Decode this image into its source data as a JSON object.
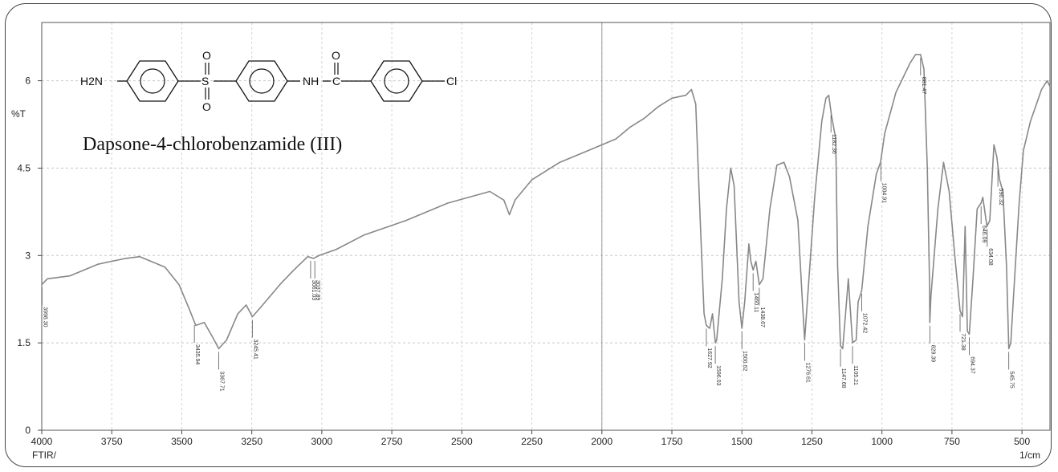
{
  "chart_data": {
    "type": "line",
    "title": "Dapsone-4-chlorobenzamide (III)",
    "structure": {
      "amine": "H2N",
      "so_top": "O",
      "so_center": "S",
      "so_bottom": "O",
      "nh": "NH",
      "c": "C",
      "carbonyl_o": "O",
      "chloro": "Cl"
    },
    "xlabel": "1/cm",
    "xlabel_left": "FTIR/",
    "ylabel": "%T",
    "xlim": [
      4000,
      400
    ],
    "ylim": [
      0,
      7
    ],
    "x_ticks": [
      "4000",
      "3750",
      "3500",
      "3250",
      "3000",
      "2750",
      "2500",
      "2250",
      "2000",
      "1750",
      "1500",
      "1250",
      "1000",
      "750",
      "500"
    ],
    "x_tick_values": [
      4000,
      3750,
      3500,
      3250,
      3000,
      2750,
      2500,
      2250,
      2000,
      1750,
      1500,
      1250,
      1000,
      750,
      500
    ],
    "y_ticks": [
      "0",
      "1.5",
      "3",
      "4.5",
      "6"
    ],
    "y_tick_values": [
      0,
      1.5,
      3,
      4.5,
      6
    ],
    "series": [
      {
        "color": "#888888",
        "points": [
          [
            4000,
            2.5
          ],
          [
            3980,
            2.6
          ],
          [
            3900,
            2.65
          ],
          [
            3800,
            2.85
          ],
          [
            3700,
            2.95
          ],
          [
            3650,
            2.98
          ],
          [
            3560,
            2.8
          ],
          [
            3510,
            2.5
          ],
          [
            3475,
            2.1
          ],
          [
            3450,
            1.8
          ],
          [
            3420,
            1.85
          ],
          [
            3390,
            1.6
          ],
          [
            3368,
            1.4
          ],
          [
            3340,
            1.55
          ],
          [
            3300,
            2.0
          ],
          [
            3270,
            2.15
          ],
          [
            3248,
            1.95
          ],
          [
            3220,
            2.1
          ],
          [
            3150,
            2.5
          ],
          [
            3100,
            2.75
          ],
          [
            3050,
            2.98
          ],
          [
            3030,
            2.95
          ],
          [
            3010,
            3.0
          ],
          [
            2950,
            3.1
          ],
          [
            2850,
            3.35
          ],
          [
            2700,
            3.6
          ],
          [
            2550,
            3.9
          ],
          [
            2400,
            4.1
          ],
          [
            2350,
            3.95
          ],
          [
            2330,
            3.7
          ],
          [
            2310,
            3.95
          ],
          [
            2250,
            4.3
          ],
          [
            2150,
            4.6
          ],
          [
            2050,
            4.8
          ],
          [
            1950,
            5.0
          ],
          [
            1900,
            5.2
          ],
          [
            1850,
            5.35
          ],
          [
            1800,
            5.55
          ],
          [
            1750,
            5.7
          ],
          [
            1700,
            5.75
          ],
          [
            1680,
            5.85
          ],
          [
            1665,
            5.6
          ],
          [
            1648,
            3.5
          ],
          [
            1635,
            2.0
          ],
          [
            1627,
            1.8
          ],
          [
            1615,
            1.75
          ],
          [
            1605,
            2.0
          ],
          [
            1595,
            1.5
          ],
          [
            1590,
            1.55
          ],
          [
            1570,
            2.6
          ],
          [
            1555,
            3.8
          ],
          [
            1540,
            4.5
          ],
          [
            1528,
            4.2
          ],
          [
            1510,
            2.2
          ],
          [
            1500,
            1.75
          ],
          [
            1490,
            2.2
          ],
          [
            1475,
            3.2
          ],
          [
            1468,
            2.9
          ],
          [
            1460,
            2.75
          ],
          [
            1450,
            2.9
          ],
          [
            1438,
            2.5
          ],
          [
            1425,
            2.6
          ],
          [
            1400,
            3.8
          ],
          [
            1375,
            4.55
          ],
          [
            1350,
            4.6
          ],
          [
            1330,
            4.35
          ],
          [
            1300,
            3.6
          ],
          [
            1285,
            2.3
          ],
          [
            1276,
            1.55
          ],
          [
            1265,
            2.3
          ],
          [
            1240,
            4.0
          ],
          [
            1215,
            5.3
          ],
          [
            1200,
            5.7
          ],
          [
            1190,
            5.75
          ],
          [
            1180,
            5.4
          ],
          [
            1165,
            5.0
          ],
          [
            1158,
            2.8
          ],
          [
            1148,
            1.45
          ],
          [
            1140,
            1.4
          ],
          [
            1125,
            2.3
          ],
          [
            1120,
            2.6
          ],
          [
            1105,
            1.5
          ],
          [
            1092,
            1.55
          ],
          [
            1085,
            2.2
          ],
          [
            1072,
            2.4
          ],
          [
            1050,
            3.5
          ],
          [
            1020,
            4.4
          ],
          [
            1005,
            4.6
          ],
          [
            990,
            5.1
          ],
          [
            950,
            5.8
          ],
          [
            900,
            6.3
          ],
          [
            880,
            6.45
          ],
          [
            862,
            6.45
          ],
          [
            850,
            6.2
          ],
          [
            838,
            4.5
          ],
          [
            830,
            2.5
          ],
          [
            829,
            1.85
          ],
          [
            825,
            2.3
          ],
          [
            800,
            3.8
          ],
          [
            780,
            4.6
          ],
          [
            760,
            4.1
          ],
          [
            740,
            3.0
          ],
          [
            721,
            2.05
          ],
          [
            712,
            1.95
          ],
          [
            703,
            3.5
          ],
          [
            695,
            1.7
          ],
          [
            688,
            1.65
          ],
          [
            675,
            2.6
          ],
          [
            660,
            3.8
          ],
          [
            646,
            3.9
          ],
          [
            640,
            4.0
          ],
          [
            625,
            3.5
          ],
          [
            615,
            3.6
          ],
          [
            600,
            4.9
          ],
          [
            590,
            4.7
          ],
          [
            580,
            4.3
          ],
          [
            568,
            4.1
          ],
          [
            555,
            2.8
          ],
          [
            547,
            1.4
          ],
          [
            540,
            1.5
          ],
          [
            530,
            2.3
          ],
          [
            510,
            3.9
          ],
          [
            495,
            4.8
          ],
          [
            470,
            5.3
          ],
          [
            430,
            5.85
          ],
          [
            410,
            6.0
          ],
          [
            400,
            5.9
          ]
        ]
      }
    ],
    "peaks": [
      {
        "x": 3999,
        "label": "3998.30"
      },
      {
        "x": 3455,
        "label": "3435.94"
      },
      {
        "x": 3368,
        "label": "3367.71"
      },
      {
        "x": 3248,
        "label": "3245.41"
      },
      {
        "x": 3040,
        "label": "3061.03"
      },
      {
        "x": 3025,
        "label": "3037.89"
      },
      {
        "x": 1627,
        "label": "1627.92"
      },
      {
        "x": 1595,
        "label": "1596.03"
      },
      {
        "x": 1500,
        "label": "1500.62"
      },
      {
        "x": 1460,
        "label": "1460.11"
      },
      {
        "x": 1438,
        "label": "1438.67"
      },
      {
        "x": 1276,
        "label": "1276.61"
      },
      {
        "x": 1182,
        "label": "1182.36"
      },
      {
        "x": 1148,
        "label": "1147.68"
      },
      {
        "x": 1105,
        "label": "1105.21"
      },
      {
        "x": 1072,
        "label": "1072.42"
      },
      {
        "x": 1004,
        "label": "1004.91"
      },
      {
        "x": 862,
        "label": "881.47"
      },
      {
        "x": 829,
        "label": "829.39"
      },
      {
        "x": 721,
        "label": "721.38"
      },
      {
        "x": 688,
        "label": "694.37"
      },
      {
        "x": 646,
        "label": "646.09"
      },
      {
        "x": 624,
        "label": "634.08"
      },
      {
        "x": 586,
        "label": "596.32"
      },
      {
        "x": 547,
        "label": "545.75"
      }
    ],
    "grid": true
  }
}
